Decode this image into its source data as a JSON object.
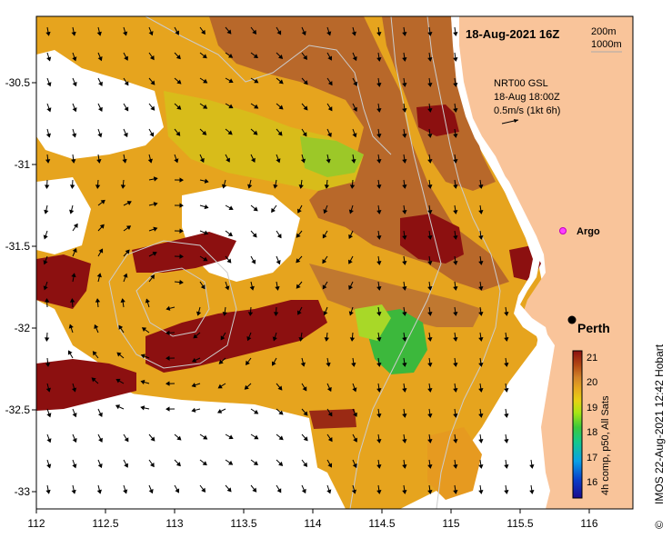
{
  "title": "18-Aug-2021 16Z",
  "contour_legend": {
    "line1": "200m",
    "line2": "1000m"
  },
  "current_info": {
    "line1": "NRT00 GSL",
    "line2": "18-Aug 18:00Z",
    "line3": "0.5m/s (1kt 6h)"
  },
  "argo_label": "Argo",
  "city_label": "Perth",
  "colorbar": {
    "ticks": [
      "21",
      "20",
      "19",
      "18",
      "17",
      "16"
    ],
    "label": "4h comp, p50, All Sats",
    "colors": [
      "#1a0a8c",
      "#0a3cc8",
      "#0a8ce6",
      "#14c8a0",
      "#28c83c",
      "#8ce614",
      "#dcdc14",
      "#e6b414",
      "#e6961e",
      "#d27828",
      "#b44614",
      "#961414"
    ]
  },
  "x_ticks": [
    "112",
    "112.5",
    "113",
    "113.5",
    "114",
    "114.5",
    "115",
    "115.5",
    "116"
  ],
  "y_ticks": [
    "-30.5",
    "-31",
    "-31.5",
    "-32",
    "-32.5",
    "-33"
  ],
  "credit": "IMOS 22-Aug-2021 12:42 Hobart",
  "copyright_symbol": "©",
  "colors": {
    "land": "#f9c49a",
    "warm": "#8c1010",
    "orange": "#e8a020",
    "brown": "#b86a2a",
    "green": "#3cb83c",
    "yellow": "#d8c018"
  }
}
